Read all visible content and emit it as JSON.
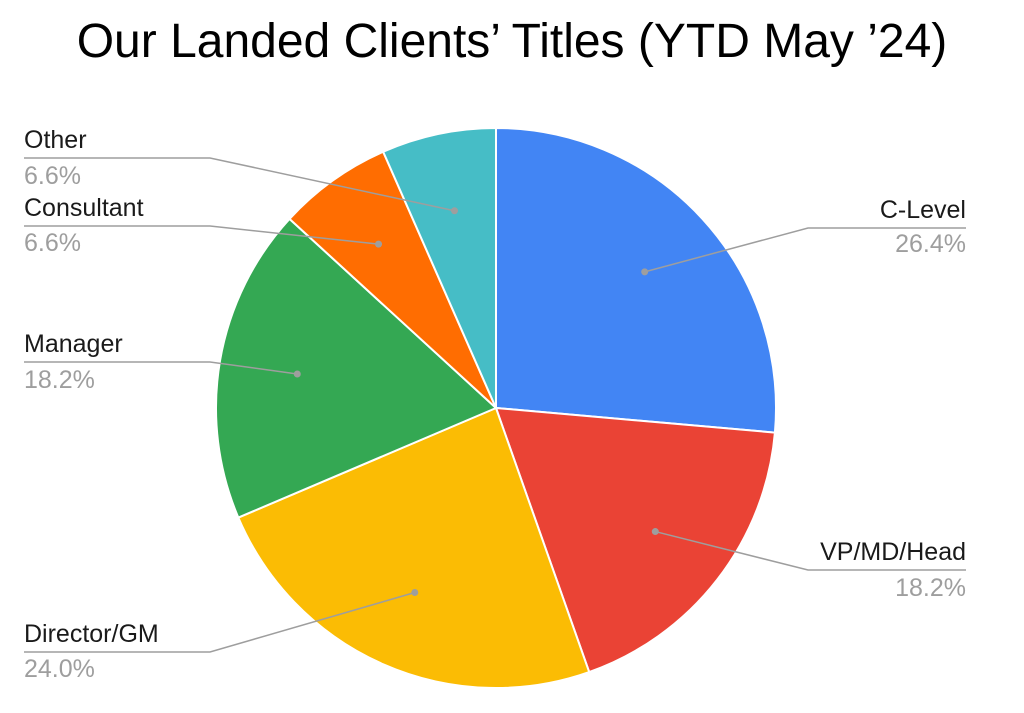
{
  "chart_data": {
    "type": "pie",
    "title": "Our Landed Clients’ Titles (YTD May ’24)",
    "start_angle_deg": 0,
    "direction": "clockwise",
    "legend": "labels-outside",
    "slices": [
      {
        "label": "C-Level",
        "value": 26.4,
        "display": "26.4%",
        "color": "#4285f4"
      },
      {
        "label": "VP/MD/Head",
        "value": 18.2,
        "display": "18.2%",
        "color": "#ea4335"
      },
      {
        "label": "Director/GM",
        "value": 24.0,
        "display": "24.0%",
        "color": "#fbbc04"
      },
      {
        "label": "Manager",
        "value": 18.2,
        "display": "18.2%",
        "color": "#34a853"
      },
      {
        "label": "Consultant",
        "value": 6.6,
        "display": "6.6%",
        "color": "#ff6d01"
      },
      {
        "label": "Other",
        "value": 6.6,
        "display": "6.6%",
        "color": "#46bdc6"
      }
    ]
  }
}
